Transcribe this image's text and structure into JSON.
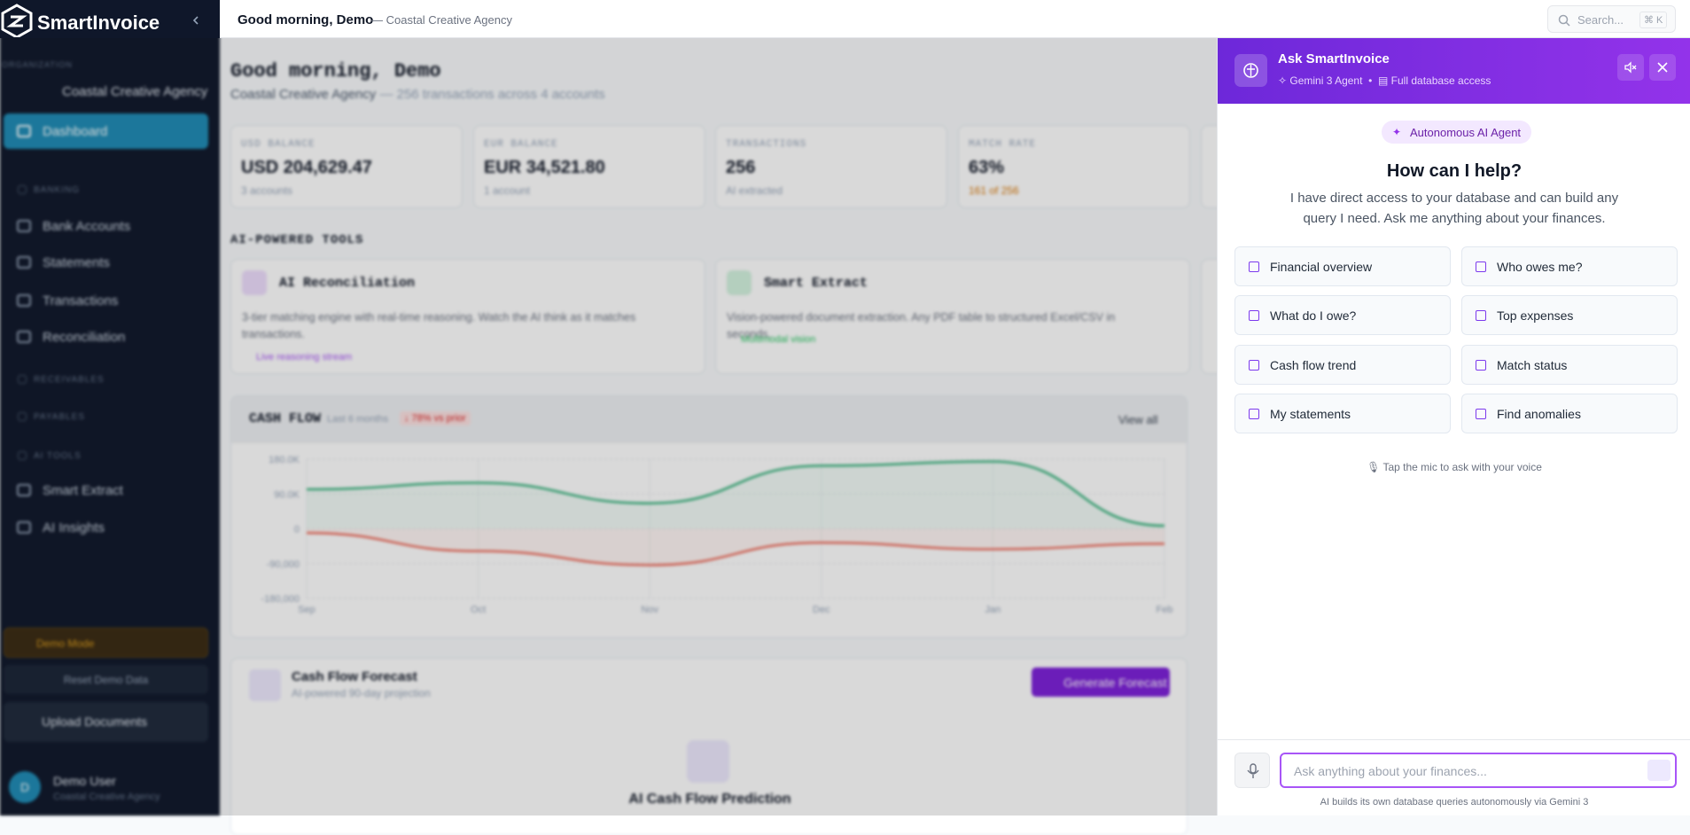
{
  "sidebar": {
    "brand": "SmartInvoice",
    "org_label": "ORGANIZATION",
    "org": "Coastal Creative Agency",
    "nav": [
      "Dashboard",
      "BANKING",
      "Bank Accounts",
      "Statements",
      "Transactions",
      "Reconciliation",
      "RECEIVABLES",
      "PAYABLES",
      "AI TOOLS",
      "Smart Extract",
      "AI Insights"
    ],
    "demo_mode": "Demo Mode",
    "reset": "Reset Demo Data",
    "upload": "Upload Documents",
    "user": {
      "initial": "D",
      "name": "Demo User",
      "org": "Coastal Creative Agency"
    }
  },
  "topbar": {
    "greeting": "Good morning, Demo",
    "org": "— Coastal Creative Agency",
    "search": "Search...",
    "shortcut": "⌘ K"
  },
  "dashboard": {
    "title": "Good morning, Demo",
    "org": "Coastal Creative Agency",
    "summary": "— 256 transactions across 4 accounts",
    "stats": [
      {
        "label": "USD BALANCE",
        "value": "USD 204,629.47",
        "sub": "3 accounts"
      },
      {
        "label": "EUR BALANCE",
        "value": "EUR 34,521.80",
        "sub": "1 account"
      },
      {
        "label": "TRANSACTIONS",
        "value": "256",
        "sub": "AI extracted"
      },
      {
        "label": "MATCH RATE",
        "value": "63%",
        "sub": "161 of 256"
      }
    ],
    "tools_heading": "AI-POWERED TOOLS",
    "tools": [
      {
        "title": "AI Reconciliation",
        "desc": "3-tier matching engine with real-time reasoning. Watch the AI think as it matches transactions.",
        "tag": "Live reasoning stream"
      },
      {
        "title": "Smart Extract",
        "desc": "Vision-powered document extraction. Any PDF table to structured Excel/CSV in seconds.",
        "tag": "Multimodal vision"
      }
    ],
    "cash_flow": {
      "title": "CASH FLOW",
      "period": "Last 6 months",
      "change": "↓ 78% vs prior",
      "view_all": "View all",
      "chart": {
        "type": "line",
        "categories": [
          "Sep",
          "Oct",
          "Nov",
          "Dec",
          "Jan",
          "Feb"
        ],
        "series": [
          {
            "color": "#34b27b",
            "values": [
              102000,
              119000,
              66000,
              163000,
              174000,
              8000
            ]
          },
          {
            "color": "#ef6b5b",
            "values": [
              -11000,
              -58000,
              -94000,
              -36000,
              -53000,
              -39000
            ]
          }
        ],
        "ylim": [
          -180000,
          180000
        ],
        "yticks": [
          {
            "value": 180000,
            "label": "180.0K"
          },
          {
            "value": 90000,
            "label": "90.0K"
          },
          0,
          {
            "value": -90000,
            "label": "-90,000"
          },
          {
            "value": -180000,
            "label": "-180,000"
          }
        ],
        "grid": true
      }
    },
    "forecast": {
      "title": "Cash Flow Forecast",
      "sub": "AI-powered 90-day projection",
      "button": "Generate Forecast",
      "empty": "AI Cash Flow Prediction"
    }
  },
  "assistant": {
    "title": "Ask SmartInvoice",
    "model": "Gemini 3 Agent",
    "access": "Full database access",
    "badge": "Autonomous AI Agent",
    "heading": "How can I help?",
    "intro": [
      "I have direct access to your database and can build any",
      "query I need. Ask me anything about your finances."
    ],
    "suggestions": [
      "Financial overview",
      "Who owes me?",
      "What do I owe?",
      "Top expenses",
      "Cash flow trend",
      "Match status",
      "My statements",
      "Find anomalies"
    ],
    "voice_hint": "Tap the mic to ask with your voice",
    "placeholder": "Ask anything about your finances...",
    "footer": "AI builds its own database queries autonomously via Gemini 3"
  }
}
